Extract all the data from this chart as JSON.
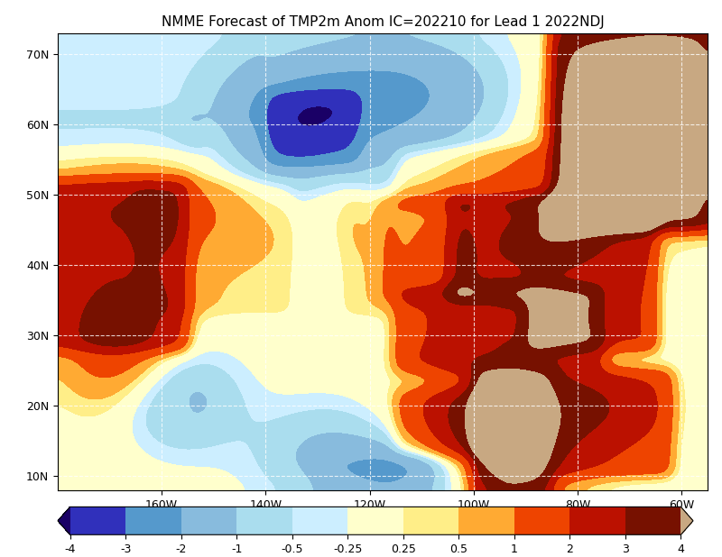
{
  "title": "NMME Forecast of TMP2m Anom IC=202210 for Lead 1 2022NDJ",
  "title_fontsize": 11,
  "lon_min": -180,
  "lon_max": -55,
  "lat_min": 8,
  "lat_max": 73,
  "colorbar_levels": [
    -4,
    -3,
    -2,
    -1,
    -0.5,
    -0.25,
    0.25,
    0.5,
    1,
    2,
    3,
    4
  ],
  "segment_colors": [
    "#3030BB",
    "#5599CC",
    "#88BBDD",
    "#AADDEE",
    "#CCEEFF",
    "#FFFFCC",
    "#FFEE88",
    "#FFAA33",
    "#EE4400",
    "#BB1100",
    "#771100"
  ],
  "under_color": "#1A0066",
  "over_color": "#C8A882",
  "colorbar_tick_labels": [
    "-4",
    "-3",
    "-2",
    "-1",
    "-0.5",
    "-0.25",
    "0.25",
    "0.5",
    "1",
    "2",
    "3",
    "4"
  ],
  "xticks": [
    -160,
    -140,
    -120,
    -100,
    -80,
    -60
  ],
  "xtick_labels": [
    "160W",
    "140W",
    "120W",
    "100W",
    "80W",
    "60W"
  ],
  "yticks": [
    10,
    20,
    30,
    40,
    50,
    60,
    70
  ],
  "ytick_labels": [
    "10N",
    "20N",
    "30N",
    "40N",
    "50N",
    "60N",
    "70N"
  ],
  "grid_color": "white",
  "grid_linestyle": "--",
  "grid_alpha": 0.8
}
